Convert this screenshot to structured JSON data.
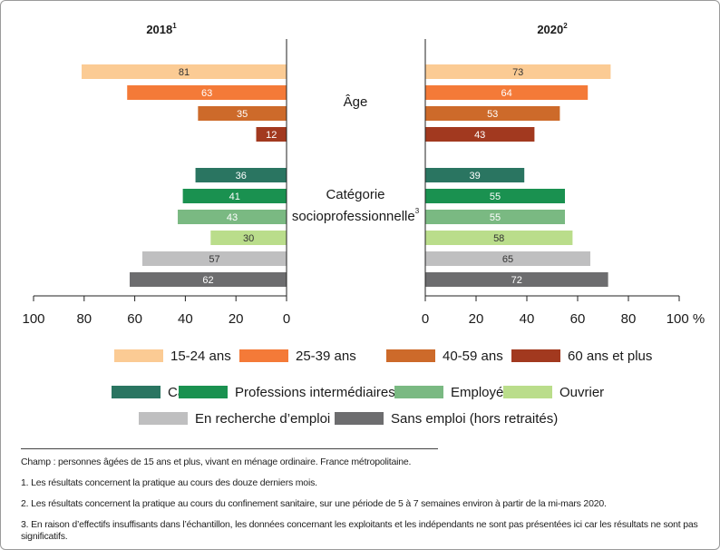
{
  "chart_data": {
    "type": "butterfly-bar",
    "categories": [
      "15-24 ans",
      "25-39 ans",
      "40-59 ans",
      "60 ans et plus",
      "Cadre",
      "Professions intermédiaires",
      "Employé",
      "Ouvrier",
      "En recherche d’emploi",
      "Sans emploi (hors retraités)"
    ],
    "colors": [
      "#fbcb94",
      "#f47a38",
      "#cd6a2a",
      "#a2391f",
      "#2a7561",
      "#1a9150",
      "#7ab982",
      "#badd8b",
      "#bfbfc0",
      "#6d6d6f"
    ],
    "series": [
      {
        "name": "2018",
        "note_ref": "1",
        "values": [
          81,
          63,
          35,
          12,
          36,
          41,
          43,
          30,
          57,
          62
        ]
      },
      {
        "name": "2020",
        "note_ref": "2",
        "values": [
          73,
          64,
          53,
          43,
          39,
          55,
          55,
          58,
          65,
          72
        ]
      }
    ],
    "group_labels": [
      {
        "lines": [
          "Âge"
        ]
      },
      {
        "lines": [
          "Catégorie",
          "socioprofessionnelle"
        ],
        "note_ref": "3"
      }
    ],
    "xlim": [
      0,
      100
    ],
    "xticks": [
      0,
      20,
      40,
      60,
      80,
      100
    ],
    "xticks_right": [
      0,
      20,
      40,
      60,
      80,
      {
        "value": 100,
        "label": "100 %"
      }
    ],
    "notes": [
      "Champ : personnes âgées de 15 ans et plus, vivant en ménage ordinaire. France métropolitaine.",
      "1.  Les résultats concernent la pratique au cours des douze derniers mois.",
      "2.  Les résultats concernent la pratique au cours du confinement sanitaire, sur une période de 5 à 7 semaines environ à partir de la mi-mars 2020.",
      "3.  En raison d’effectifs insuffisants dans l’échantillon, les données concernant les exploitants et les indépendants ne sont pas présentées ici car les résultats ne sont pas significatifs."
    ]
  }
}
